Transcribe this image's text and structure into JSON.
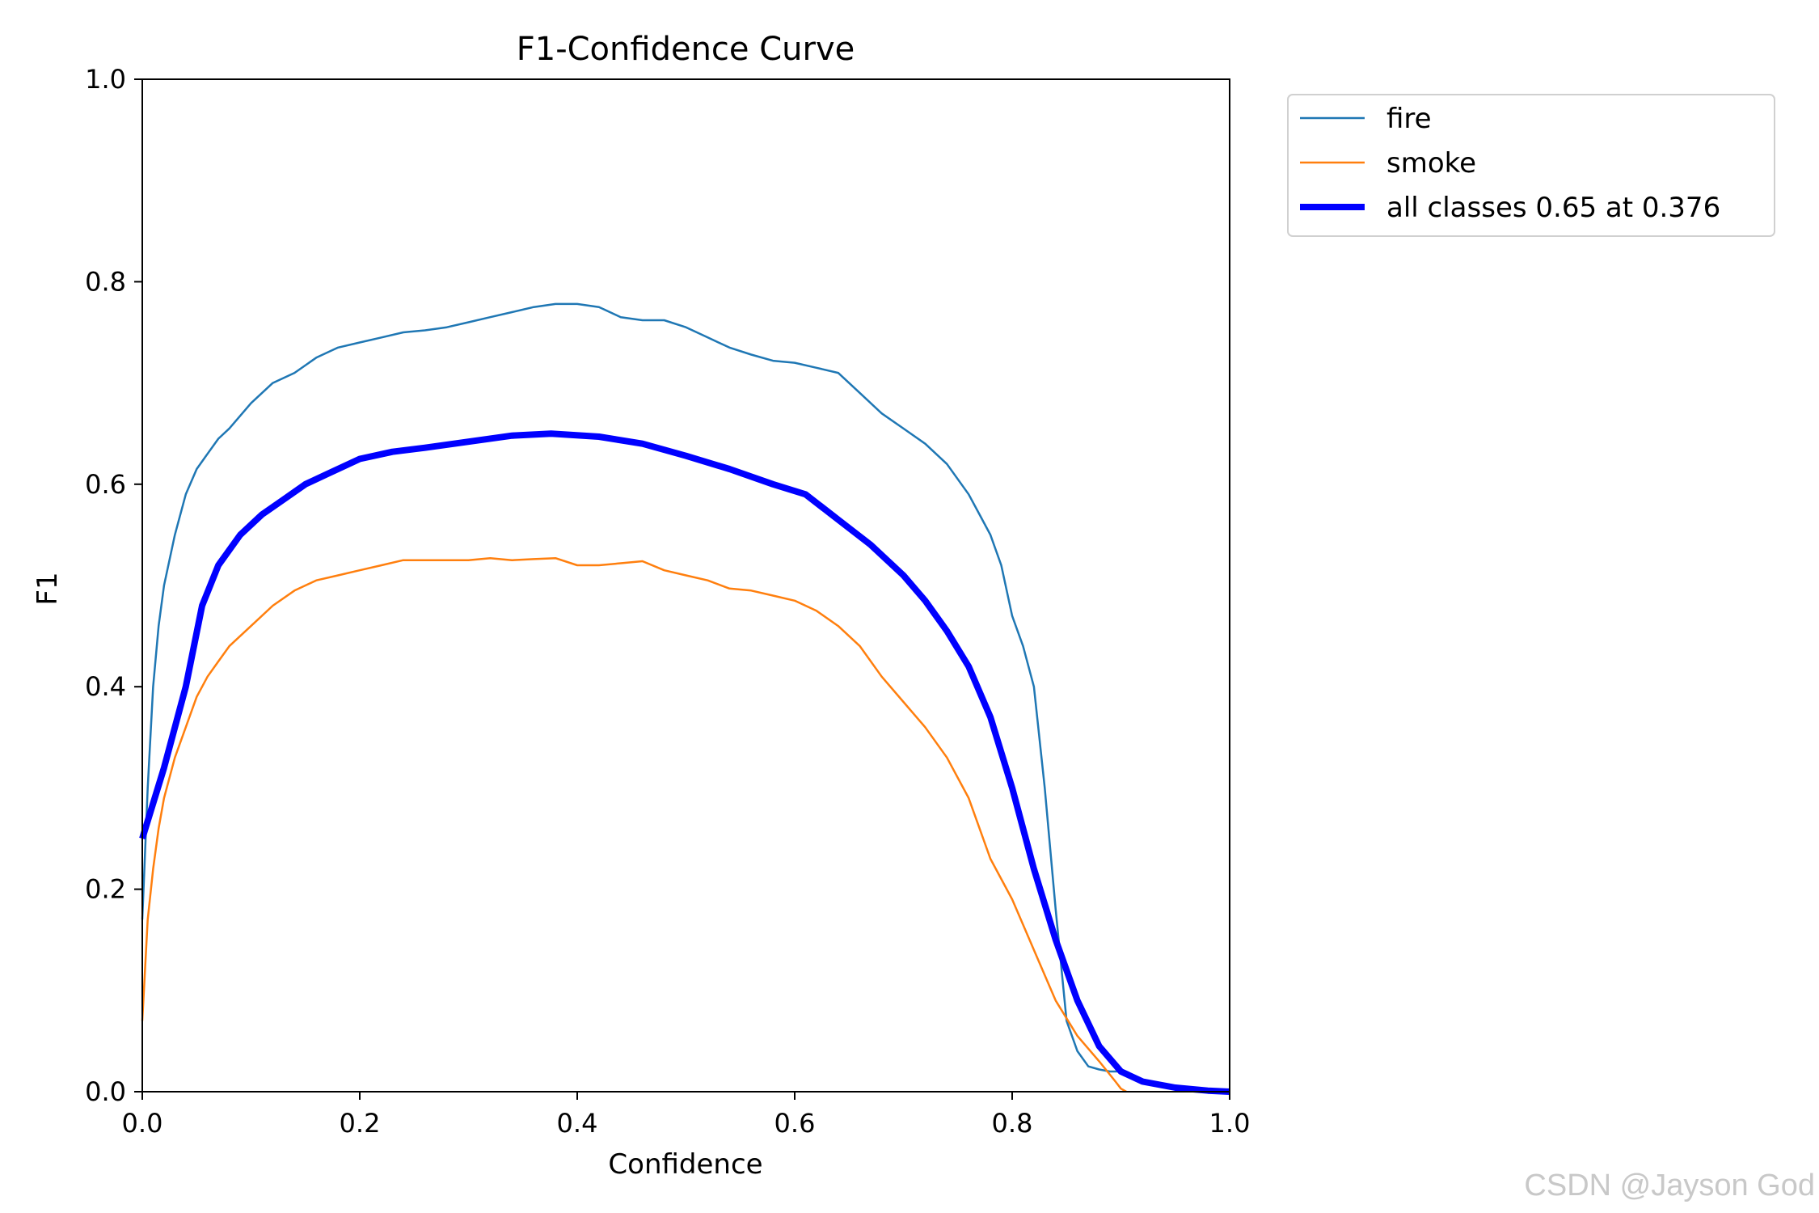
{
  "chart_data": {
    "type": "line",
    "title": "F1-Confidence Curve",
    "xlabel": "Confidence",
    "ylabel": "F1",
    "xlim": [
      0.0,
      1.0
    ],
    "ylim": [
      0.0,
      1.0
    ],
    "xticks": [
      "0.0",
      "0.2",
      "0.4",
      "0.6",
      "0.8",
      "1.0"
    ],
    "yticks": [
      "0.0",
      "0.2",
      "0.4",
      "0.6",
      "0.8",
      "1.0"
    ],
    "grid": false,
    "legend_position": "outside-top-right",
    "series": [
      {
        "name": "fire",
        "color": "#1f77b4",
        "width": "thin",
        "x": [
          0.0,
          0.005,
          0.01,
          0.015,
          0.02,
          0.03,
          0.04,
          0.05,
          0.06,
          0.07,
          0.08,
          0.1,
          0.12,
          0.14,
          0.16,
          0.18,
          0.2,
          0.22,
          0.24,
          0.26,
          0.28,
          0.3,
          0.32,
          0.34,
          0.36,
          0.38,
          0.4,
          0.42,
          0.44,
          0.46,
          0.48,
          0.5,
          0.52,
          0.54,
          0.56,
          0.58,
          0.6,
          0.62,
          0.64,
          0.66,
          0.68,
          0.7,
          0.72,
          0.74,
          0.76,
          0.77,
          0.78,
          0.79,
          0.8,
          0.81,
          0.82,
          0.83,
          0.84,
          0.85,
          0.86,
          0.87,
          0.88,
          0.89,
          0.9
        ],
        "y": [
          0.17,
          0.3,
          0.4,
          0.46,
          0.5,
          0.55,
          0.59,
          0.615,
          0.63,
          0.645,
          0.655,
          0.68,
          0.7,
          0.71,
          0.725,
          0.735,
          0.74,
          0.745,
          0.75,
          0.752,
          0.755,
          0.76,
          0.765,
          0.77,
          0.775,
          0.778,
          0.778,
          0.775,
          0.765,
          0.762,
          0.762,
          0.755,
          0.745,
          0.735,
          0.728,
          0.722,
          0.72,
          0.715,
          0.71,
          0.69,
          0.67,
          0.655,
          0.64,
          0.62,
          0.59,
          0.57,
          0.55,
          0.52,
          0.47,
          0.44,
          0.4,
          0.3,
          0.18,
          0.07,
          0.04,
          0.025,
          0.022,
          0.02,
          0.02
        ]
      },
      {
        "name": "smoke",
        "color": "#ff7f0e",
        "width": "thin",
        "x": [
          0.0,
          0.005,
          0.01,
          0.015,
          0.02,
          0.03,
          0.04,
          0.05,
          0.06,
          0.07,
          0.08,
          0.1,
          0.12,
          0.14,
          0.16,
          0.18,
          0.2,
          0.22,
          0.24,
          0.26,
          0.28,
          0.3,
          0.32,
          0.34,
          0.36,
          0.38,
          0.4,
          0.42,
          0.44,
          0.46,
          0.48,
          0.5,
          0.52,
          0.54,
          0.56,
          0.58,
          0.6,
          0.62,
          0.64,
          0.66,
          0.68,
          0.7,
          0.72,
          0.74,
          0.76,
          0.78,
          0.8,
          0.82,
          0.84,
          0.86,
          0.88,
          0.895,
          0.9,
          0.905
        ],
        "y": [
          0.07,
          0.17,
          0.22,
          0.26,
          0.29,
          0.33,
          0.36,
          0.39,
          0.41,
          0.425,
          0.44,
          0.46,
          0.48,
          0.495,
          0.505,
          0.51,
          0.515,
          0.52,
          0.525,
          0.525,
          0.525,
          0.525,
          0.527,
          0.525,
          0.526,
          0.527,
          0.52,
          0.52,
          0.522,
          0.524,
          0.515,
          0.51,
          0.505,
          0.497,
          0.495,
          0.49,
          0.485,
          0.475,
          0.46,
          0.44,
          0.41,
          0.385,
          0.36,
          0.33,
          0.29,
          0.23,
          0.19,
          0.14,
          0.09,
          0.055,
          0.03,
          0.01,
          0.003,
          0.0
        ]
      },
      {
        "name": "all classes 0.65 at 0.376",
        "color": "#0000ff",
        "width": "thick",
        "x": [
          0.0,
          0.02,
          0.04,
          0.055,
          0.07,
          0.09,
          0.11,
          0.13,
          0.15,
          0.17,
          0.2,
          0.23,
          0.26,
          0.3,
          0.34,
          0.376,
          0.42,
          0.46,
          0.5,
          0.54,
          0.58,
          0.61,
          0.64,
          0.67,
          0.7,
          0.72,
          0.74,
          0.76,
          0.78,
          0.8,
          0.82,
          0.84,
          0.86,
          0.88,
          0.9,
          0.92,
          0.95,
          0.98,
          1.0
        ],
        "y": [
          0.25,
          0.32,
          0.4,
          0.48,
          0.52,
          0.55,
          0.57,
          0.585,
          0.6,
          0.61,
          0.625,
          0.632,
          0.636,
          0.642,
          0.648,
          0.65,
          0.647,
          0.64,
          0.628,
          0.615,
          0.6,
          0.59,
          0.565,
          0.54,
          0.51,
          0.485,
          0.455,
          0.42,
          0.37,
          0.3,
          0.22,
          0.15,
          0.09,
          0.045,
          0.02,
          0.01,
          0.004,
          0.001,
          0.0
        ]
      }
    ]
  },
  "watermark": "CSDN @Jayson God"
}
